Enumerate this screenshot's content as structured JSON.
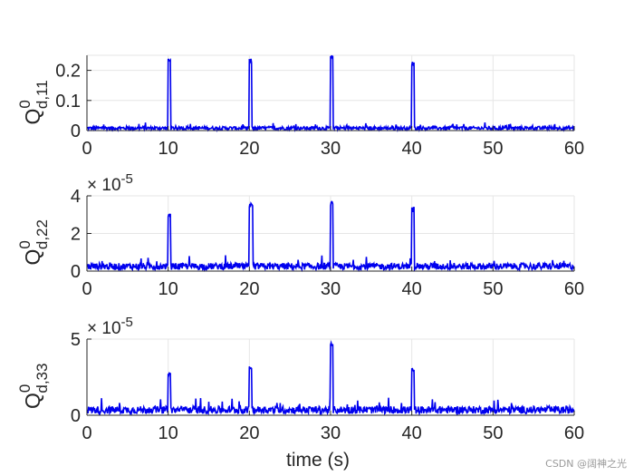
{
  "chart_data": [
    {
      "type": "line",
      "ylabel_main": "Q",
      "ylabel_sup": "0",
      "ylabel_sub": "d,11",
      "exponent_label": "",
      "x_ticks": [
        "0",
        "10",
        "20",
        "30",
        "40",
        "50",
        "60"
      ],
      "y_tick_values": [
        0,
        0.1,
        0.2
      ],
      "y_tick_labels": [
        "0",
        "0.1",
        "0.2"
      ],
      "xlim": [
        0,
        60
      ],
      "ylim": [
        0,
        0.25
      ],
      "grid": true,
      "line_color": "#0000ee",
      "baseline": 0.008,
      "spikes": [
        {
          "x0": 10.0,
          "x1": 10.3,
          "peak": 0.245
        },
        {
          "x0": 20.0,
          "x1": 20.3,
          "peak": 0.24
        },
        {
          "x0": 30.0,
          "x1": 30.3,
          "peak": 0.255
        },
        {
          "x0": 40.0,
          "x1": 40.3,
          "peak": 0.23
        }
      ]
    },
    {
      "type": "line",
      "ylabel_main": "Q",
      "ylabel_sup": "0",
      "ylabel_sub": "d,22",
      "exponent_label": "-5",
      "x_ticks": [
        "0",
        "10",
        "20",
        "30",
        "40",
        "50",
        "60"
      ],
      "y_tick_values": [
        0,
        2,
        4
      ],
      "y_tick_labels": [
        "0",
        "2",
        "4"
      ],
      "xlim": [
        0,
        60
      ],
      "ylim": [
        0,
        4
      ],
      "grid": true,
      "line_color": "#0000ee",
      "baseline": 0.25,
      "spikes": [
        {
          "x0": 10.0,
          "x1": 10.3,
          "peak": 3.1
        },
        {
          "x0": 20.0,
          "x1": 20.4,
          "peak": 3.6
        },
        {
          "x0": 30.0,
          "x1": 30.3,
          "peak": 3.7
        },
        {
          "x0": 40.0,
          "x1": 40.3,
          "peak": 3.4
        }
      ]
    },
    {
      "type": "line",
      "ylabel_main": "Q",
      "ylabel_sup": "0",
      "ylabel_sub": "d,33",
      "exponent_label": "-5",
      "x_ticks": [
        "0",
        "10",
        "20",
        "30",
        "40",
        "50",
        "60"
      ],
      "y_tick_values": [
        0,
        5
      ],
      "y_tick_labels": [
        "0",
        "5"
      ],
      "xlim": [
        0,
        60
      ],
      "ylim": [
        0,
        5
      ],
      "grid": true,
      "line_color": "#0000ee",
      "baseline": 0.35,
      "spikes": [
        {
          "x0": 10.0,
          "x1": 10.3,
          "peak": 2.8
        },
        {
          "x0": 20.0,
          "x1": 20.3,
          "peak": 3.3
        },
        {
          "x0": 30.0,
          "x1": 30.3,
          "peak": 4.8
        },
        {
          "x0": 40.0,
          "x1": 40.3,
          "peak": 3.1
        }
      ]
    }
  ],
  "xlabel": "time (s)",
  "watermark": "CSDN @阔神之光"
}
